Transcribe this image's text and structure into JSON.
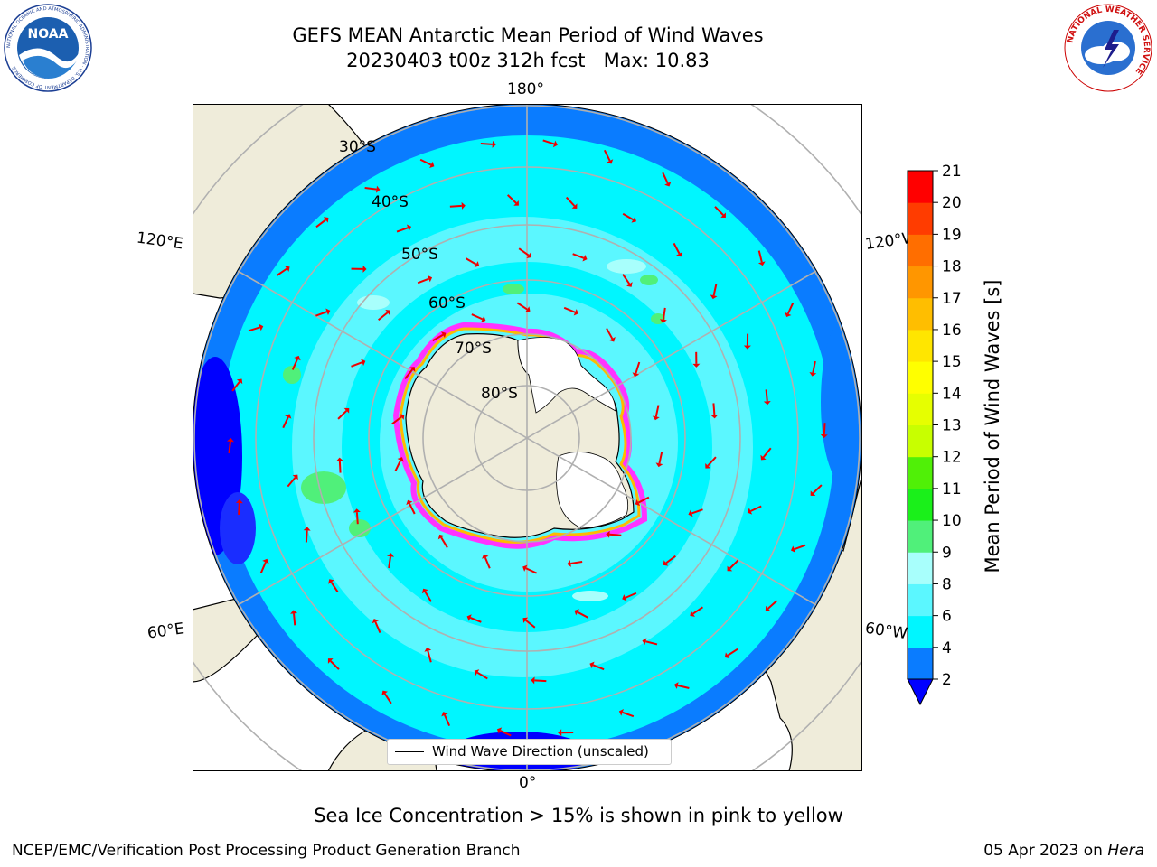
{
  "header": {
    "title_line1": "GEFS MEAN Antarctic Mean Period of Wind Waves",
    "title_line2": "20230403 t00z 312h fcst   Max: 10.83"
  },
  "logos": {
    "left": "NOAA",
    "left_ring": "NATIONAL OCEANIC AND ATMOSPHERIC ADMINISTRATION · U.S. DEPARTMENT OF COMMERCE",
    "right_ring": "NATIONAL WEATHER SERVICE"
  },
  "map": {
    "projection": "south-polar-stereographic",
    "lon_labels": {
      "top": "180°",
      "bottom": "0°",
      "left_upper": "120°E",
      "left_lower": "60°E",
      "right_upper": "120°W",
      "right_lower": "60°W"
    },
    "lat_labels": [
      "30°S",
      "40°S",
      "50°S",
      "60°S",
      "70°S",
      "80°S"
    ],
    "ocean_colors": {
      "deep": "#0000ff",
      "low": "#0a7cff",
      "mid": "#00f6ff",
      "high": "#5bf7ff",
      "pale": "#a8fffc",
      "green": "#50f07a",
      "land": "#efecda",
      "ice_edge": "#ff33ff",
      "ice_inner": "#ffb900"
    },
    "arrow_color": "#ee0000"
  },
  "legend": {
    "line_label": "Wind Wave Direction (unscaled)"
  },
  "colorbar": {
    "label": "Mean Period of Wind Waves [s]",
    "ticks": [
      "2",
      "4",
      "6",
      "8",
      "9",
      "10",
      "11",
      "12",
      "13",
      "14",
      "15",
      "16",
      "17",
      "18",
      "19",
      "20",
      "21"
    ],
    "colors": [
      "#0a7cff",
      "#00f6ff",
      "#5bf7ff",
      "#a8fffc",
      "#50f07a",
      "#1af01a",
      "#50f007",
      "#c8ff00",
      "#e6ff00",
      "#ffff00",
      "#ffe600",
      "#ffbe00",
      "#ff9600",
      "#ff6e00",
      "#ff3c00",
      "#ff0000"
    ],
    "under_color": "#0000ff"
  },
  "footer": {
    "note": "Sea Ice Concentration > 15% is shown in pink to yellow",
    "credit_left": "NCEP/EMC/Verification Post Processing Product Generation Branch",
    "date": "05 Apr 2023 on",
    "machine": "Hera"
  }
}
